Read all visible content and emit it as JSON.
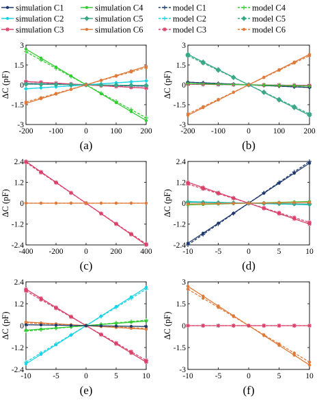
{
  "legend": [
    {
      "label": "simulation C1",
      "color": "#1f3a6e",
      "dash": false,
      "marker": "dot"
    },
    {
      "label": "simulation C4",
      "color": "#33cc33",
      "dash": false,
      "marker": "dot"
    },
    {
      "label": "model C1",
      "color": "#1f3a6e",
      "dash": true,
      "marker": "plus"
    },
    {
      "label": "model C4",
      "color": "#33cc33",
      "dash": true,
      "marker": "plus"
    },
    {
      "label": "simulation C2",
      "color": "#19d3e6",
      "dash": false,
      "marker": "dot"
    },
    {
      "label": "simulation C5",
      "color": "#3aa889",
      "dash": false,
      "marker": "diamond"
    },
    {
      "label": "model C2",
      "color": "#19d3e6",
      "dash": true,
      "marker": "plus"
    },
    {
      "label": "model C5",
      "color": "#3aa889",
      "dash": true,
      "marker": "diamond"
    },
    {
      "label": "simulation C3",
      "color": "#d9416a",
      "dash": false,
      "marker": "star"
    },
    {
      "label": "simulation C6",
      "color": "#e07a3a",
      "dash": false,
      "marker": "dot"
    },
    {
      "label": "model C3",
      "color": "#d9416a",
      "dash": true,
      "marker": "star"
    },
    {
      "label": "model C6",
      "color": "#e07a3a",
      "dash": true,
      "marker": "dot"
    }
  ],
  "ylabel": "ΔC (pF)",
  "chart_data": [
    {
      "panel": "(a)",
      "type": "line",
      "xlim": [
        -200,
        200
      ],
      "ylim": [
        -3,
        3
      ],
      "xticks": [
        -200,
        -100,
        0,
        100,
        200
      ],
      "yticks": [
        -3,
        -1.5,
        0,
        1.5,
        3
      ],
      "xtick_labels": [
        "-200",
        "-100",
        "0",
        "100",
        "200"
      ],
      "ytick_labels": [
        "-3",
        "-1.5",
        "0",
        "1.5",
        "3"
      ],
      "series": [
        {
          "name": "simulation C1",
          "x": [
            -200,
            200
          ],
          "y": [
            0.1,
            -0.1
          ]
        },
        {
          "name": "simulation C2",
          "x": [
            -200,
            200
          ],
          "y": [
            -0.3,
            0.3
          ]
        },
        {
          "name": "simulation C3",
          "x": [
            -200,
            200
          ],
          "y": [
            0.25,
            -0.25
          ]
        },
        {
          "name": "simulation C4",
          "x": [
            -200,
            200
          ],
          "y": [
            2.7,
            -2.7
          ]
        },
        {
          "name": "simulation C5",
          "x": [
            -200,
            200
          ],
          "y": [
            0.05,
            -0.05
          ]
        },
        {
          "name": "simulation C6",
          "x": [
            -200,
            200
          ],
          "y": [
            -1.4,
            1.4
          ]
        },
        {
          "name": "model C1",
          "x": [
            -200,
            200
          ],
          "y": [
            0.1,
            -0.1
          ]
        },
        {
          "name": "model C2",
          "x": [
            -200,
            200
          ],
          "y": [
            -0.3,
            0.3
          ]
        },
        {
          "name": "model C3",
          "x": [
            -200,
            200
          ],
          "y": [
            0.25,
            -0.25
          ]
        },
        {
          "name": "model C4",
          "x": [
            -200,
            200
          ],
          "y": [
            2.5,
            -2.5
          ]
        },
        {
          "name": "model C5",
          "x": [
            -200,
            200
          ],
          "y": [
            0.05,
            -0.05
          ]
        },
        {
          "name": "model C6",
          "x": [
            -200,
            200
          ],
          "y": [
            -1.3,
            1.3
          ]
        }
      ]
    },
    {
      "panel": "(b)",
      "type": "line",
      "xlim": [
        -200,
        200
      ],
      "ylim": [
        -3,
        3
      ],
      "xticks": [
        -200,
        -100,
        0,
        100,
        200
      ],
      "yticks": [
        -3,
        -1.5,
        0,
        1.5,
        3
      ],
      "xtick_labels": [
        "-200",
        "-100",
        "0",
        "100",
        "200"
      ],
      "ytick_labels": [
        "-3",
        "-1.5",
        "0",
        "1.5",
        "3"
      ],
      "series": [
        {
          "name": "simulation C1",
          "x": [
            -200,
            200
          ],
          "y": [
            0.2,
            -0.2
          ]
        },
        {
          "name": "simulation C2",
          "x": [
            -200,
            200
          ],
          "y": [
            0.05,
            -0.05
          ]
        },
        {
          "name": "simulation C3",
          "x": [
            -200,
            200
          ],
          "y": [
            0.05,
            -0.05
          ]
        },
        {
          "name": "simulation C4",
          "x": [
            -200,
            200
          ],
          "y": [
            0.1,
            -0.1
          ]
        },
        {
          "name": "simulation C5",
          "x": [
            -200,
            200
          ],
          "y": [
            2.3,
            -2.3
          ]
        },
        {
          "name": "simulation C6",
          "x": [
            -200,
            200
          ],
          "y": [
            -2.3,
            2.3
          ]
        },
        {
          "name": "model C1",
          "x": [
            -200,
            200
          ],
          "y": [
            0.2,
            -0.2
          ]
        },
        {
          "name": "model C2",
          "x": [
            -200,
            200
          ],
          "y": [
            0.05,
            -0.05
          ]
        },
        {
          "name": "model C3",
          "x": [
            -200,
            200
          ],
          "y": [
            0.05,
            -0.05
          ]
        },
        {
          "name": "model C4",
          "x": [
            -200,
            200
          ],
          "y": [
            0.1,
            -0.1
          ]
        },
        {
          "name": "model C5",
          "x": [
            -200,
            200
          ],
          "y": [
            2.2,
            -2.2
          ]
        },
        {
          "name": "model C6",
          "x": [
            -200,
            200
          ],
          "y": [
            -2.2,
            2.2
          ]
        }
      ]
    },
    {
      "panel": "(c)",
      "type": "line",
      "xlim": [
        -400,
        400
      ],
      "ylim": [
        -2.4,
        2.4
      ],
      "xticks": [
        -400,
        -200,
        0,
        200,
        400
      ],
      "yticks": [
        -2.4,
        -1.2,
        0,
        1.2,
        2.4
      ],
      "xtick_labels": [
        "-400",
        "-200",
        "0",
        "200",
        "400"
      ],
      "ytick_labels": [
        "-2.4",
        "-1.2",
        "0",
        "1.2",
        "2.4"
      ],
      "series": [
        {
          "name": "simulation C3",
          "x": [
            -400,
            400
          ],
          "y": [
            2.4,
            -2.4
          ]
        },
        {
          "name": "model C3",
          "x": [
            -400,
            400
          ],
          "y": [
            2.35,
            -2.35
          ]
        },
        {
          "name": "simulation C6",
          "x": [
            -400,
            400
          ],
          "y": [
            0,
            0
          ]
        },
        {
          "name": "model C6",
          "x": [
            -400,
            400
          ],
          "y": [
            0,
            0
          ]
        }
      ]
    },
    {
      "panel": "(d)",
      "type": "line",
      "xlim": [
        -10,
        10
      ],
      "ylim": [
        -2.4,
        2.4
      ],
      "xticks": [
        -10,
        -5,
        0,
        5,
        10
      ],
      "yticks": [
        -2.4,
        -1.2,
        0,
        1.2,
        2.4
      ],
      "xtick_labels": [
        "-10",
        "-5",
        "0",
        "5",
        "10"
      ],
      "ytick_labels": [
        "-2.4",
        "-1.2",
        "0",
        "1.2",
        "2.4"
      ],
      "series": [
        {
          "name": "simulation C1",
          "x": [
            -10,
            10
          ],
          "y": [
            -2.3,
            2.3
          ]
        },
        {
          "name": "model C1",
          "x": [
            -10,
            10
          ],
          "y": [
            -2.4,
            2.4
          ]
        },
        {
          "name": "simulation C3",
          "x": [
            -10,
            10
          ],
          "y": [
            1.2,
            -1.2
          ]
        },
        {
          "name": "model C3",
          "x": [
            -10,
            10
          ],
          "y": [
            1.1,
            -1.1
          ]
        },
        {
          "name": "simulation C2",
          "x": [
            -10,
            10
          ],
          "y": [
            0.1,
            -0.1
          ]
        },
        {
          "name": "simulation C4",
          "x": [
            -10,
            10
          ],
          "y": [
            -0.1,
            0.1
          ]
        },
        {
          "name": "simulation C5",
          "x": [
            -10,
            10
          ],
          "y": [
            0.05,
            -0.05
          ]
        },
        {
          "name": "simulation C6",
          "x": [
            -10,
            10
          ],
          "y": [
            -0.05,
            0.05
          ]
        }
      ]
    },
    {
      "panel": "(e)",
      "type": "line",
      "xlim": [
        -10,
        10
      ],
      "ylim": [
        -2.4,
        2.4
      ],
      "xticks": [
        -10,
        -5,
        0,
        5,
        10
      ],
      "yticks": [
        -2.4,
        -1.2,
        0,
        1.2,
        2.4
      ],
      "xtick_labels": [
        "-10",
        "-5",
        "0",
        "5",
        "10"
      ],
      "ytick_labels": [
        "-2.4",
        "-1.2",
        "0",
        "1.2",
        "2.4"
      ],
      "series": [
        {
          "name": "simulation C2",
          "x": [
            -10,
            10
          ],
          "y": [
            -2.1,
            2.1
          ]
        },
        {
          "name": "model C2",
          "x": [
            -10,
            10
          ],
          "y": [
            -2.0,
            2.0
          ]
        },
        {
          "name": "simulation C3",
          "x": [
            -10,
            10
          ],
          "y": [
            2.0,
            -2.0
          ]
        },
        {
          "name": "model C3",
          "x": [
            -10,
            10
          ],
          "y": [
            1.9,
            -1.9
          ]
        },
        {
          "name": "simulation C4",
          "x": [
            -10,
            10
          ],
          "y": [
            -0.25,
            0.25
          ]
        },
        {
          "name": "model C4",
          "x": [
            -10,
            10
          ],
          "y": [
            -0.3,
            0.3
          ]
        },
        {
          "name": "simulation C6",
          "x": [
            -10,
            10
          ],
          "y": [
            0.2,
            -0.2
          ]
        },
        {
          "name": "model C6",
          "x": [
            -10,
            10
          ],
          "y": [
            0.15,
            -0.15
          ]
        },
        {
          "name": "simulation C1",
          "x": [
            -10,
            10
          ],
          "y": [
            0.05,
            -0.05
          ]
        }
      ]
    },
    {
      "panel": "(f)",
      "type": "line",
      "xlim": [
        -10,
        10
      ],
      "ylim": [
        -3,
        3
      ],
      "xticks": [
        -10,
        -5,
        0,
        5,
        10
      ],
      "yticks": [
        -3,
        -1.5,
        0,
        1.5,
        3
      ],
      "xtick_labels": [
        "-10",
        "-5",
        "0",
        "5",
        "10"
      ],
      "ytick_labels": [
        "-3",
        "-1.5",
        "0",
        "1.5",
        "3"
      ],
      "series": [
        {
          "name": "simulation C6",
          "x": [
            -10,
            10
          ],
          "y": [
            2.7,
            -2.7
          ]
        },
        {
          "name": "model C6",
          "x": [
            -10,
            10
          ],
          "y": [
            2.5,
            -2.5
          ]
        },
        {
          "name": "simulation C3",
          "x": [
            -10,
            10
          ],
          "y": [
            0,
            0
          ]
        },
        {
          "name": "model C3",
          "x": [
            -10,
            10
          ],
          "y": [
            0,
            0
          ]
        }
      ]
    }
  ]
}
